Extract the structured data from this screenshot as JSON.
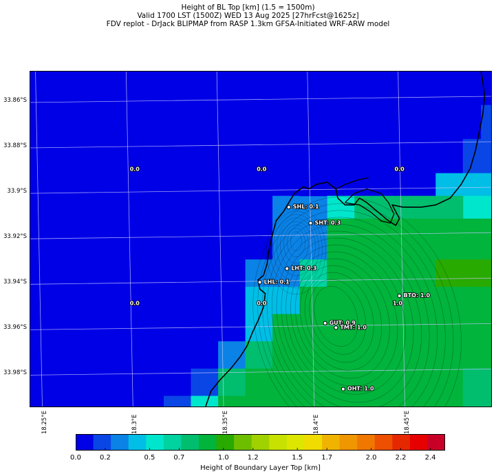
{
  "titles": {
    "line1": "Height of BL Top [km] (1.5 = 1500m)",
    "line2": "Valid 1700 LST (1500Z) WED 13 Aug 2025 [27hrFcst@1625z]",
    "line3": "FDV replot - DrJack BLIPMAP from RASP 1.3km GFSA-Initiated WRF-ARW model"
  },
  "chart_data": {
    "type": "heatmap",
    "lat_range": [
      -33.995,
      -33.847
    ],
    "lon_range": [
      18.246,
      18.501
    ],
    "lat_ticks": [
      {
        "label": "33.86°S",
        "value": -33.86
      },
      {
        "label": "33.88°S",
        "value": -33.88
      },
      {
        "label": "33.9°S",
        "value": -33.9
      },
      {
        "label": "33.92°S",
        "value": -33.92
      },
      {
        "label": "33.94°S",
        "value": -33.94
      },
      {
        "label": "33.96°S",
        "value": -33.96
      },
      {
        "label": "33.98°S",
        "value": -33.98
      }
    ],
    "lon_ticks": [
      {
        "label": "18.25°E",
        "value": 18.25
      },
      {
        "label": "18.3°E",
        "value": 18.3
      },
      {
        "label": "18.35°E",
        "value": 18.35
      },
      {
        "label": "18.4°E",
        "value": 18.4
      },
      {
        "label": "18.45°E",
        "value": 18.45
      }
    ],
    "colorbar": {
      "label": "Height of Boundary Layer Top [km]",
      "min": 0.0,
      "max": 2.5,
      "colors": [
        "#0000e6",
        "#0a46e6",
        "#0a82e6",
        "#00bee6",
        "#00e6cd",
        "#00d2a0",
        "#00be6e",
        "#00b43c",
        "#28aa00",
        "#6ebe00",
        "#a0d200",
        "#c8e100",
        "#dce600",
        "#f0dc00",
        "#f0b400",
        "#f09600",
        "#f07800",
        "#ec5000",
        "#e62800",
        "#e60000",
        "#c80028"
      ],
      "tick_labels": [
        {
          "label": "0.0",
          "value": 0.0
        },
        {
          "label": "0.2",
          "value": 0.2
        },
        {
          "label": "0.5",
          "value": 0.5
        },
        {
          "label": "0.7",
          "value": 0.7
        },
        {
          "label": "1.0",
          "value": 1.0
        },
        {
          "label": "1.2",
          "value": 1.2
        },
        {
          "label": "1.5",
          "value": 1.5
        },
        {
          "label": "1.7",
          "value": 1.7
        },
        {
          "label": "2.0",
          "value": 2.0
        },
        {
          "label": "2.2",
          "value": 2.2
        },
        {
          "label": "2.4",
          "value": 2.4
        }
      ]
    },
    "field_cells": [
      {
        "lon": [
          18.495,
          18.501
        ],
        "lat": [
          -33.862,
          -33.847
        ],
        "value": 0.05
      },
      {
        "lon": [
          18.495,
          18.501
        ],
        "lat": [
          -33.877,
          -33.862
        ],
        "value": 0.15
      },
      {
        "lon": [
          18.485,
          18.501
        ],
        "lat": [
          -33.892,
          -33.877
        ],
        "value": 0.15
      },
      {
        "lon": [
          18.47,
          18.501
        ],
        "lat": [
          -33.902,
          -33.892
        ],
        "value": 0.4
      },
      {
        "lon": [
          18.485,
          18.501
        ],
        "lat": [
          -33.912,
          -33.902
        ],
        "value": 0.55
      },
      {
        "lon": [
          18.47,
          18.485
        ],
        "lat": [
          -33.912,
          -33.902
        ],
        "value": 0.8
      },
      {
        "lon": [
          18.455,
          18.47
        ],
        "lat": [
          -33.912,
          -33.902
        ],
        "value": 0.8
      },
      {
        "lon": [
          18.44,
          18.455
        ],
        "lat": [
          -33.912,
          -33.902
        ],
        "value": 0.8
      },
      {
        "lon": [
          18.425,
          18.44
        ],
        "lat": [
          -33.912,
          -33.902
        ],
        "value": 0.8
      },
      {
        "lon": [
          18.41,
          18.425
        ],
        "lat": [
          -33.912,
          -33.902
        ],
        "value": 0.55
      },
      {
        "lon": [
          18.395,
          18.41
        ],
        "lat": [
          -33.912,
          -33.902
        ],
        "value": 0.3
      },
      {
        "lon": [
          18.38,
          18.395
        ],
        "lat": [
          -33.912,
          -33.902
        ],
        "value": 0.25
      },
      {
        "lon": [
          18.395,
          18.41
        ],
        "lat": [
          -33.902,
          -33.892
        ],
        "value": 0.1
      },
      {
        "lon": [
          18.38,
          18.395
        ],
        "lat": [
          -33.93,
          -33.912
        ],
        "value": 0.25
      },
      {
        "lon": [
          18.395,
          18.41
        ],
        "lat": [
          -33.93,
          -33.912
        ],
        "value": 0.25
      },
      {
        "lon": [
          18.41,
          18.425
        ],
        "lat": [
          -33.93,
          -33.912
        ],
        "value": 0.85
      },
      {
        "lon": [
          18.425,
          18.501
        ],
        "lat": [
          -33.93,
          -33.912
        ],
        "value": 0.9
      },
      {
        "lon": [
          18.365,
          18.38
        ],
        "lat": [
          -33.942,
          -33.93
        ],
        "value": 0.3
      },
      {
        "lon": [
          18.38,
          18.395
        ],
        "lat": [
          -33.942,
          -33.93
        ],
        "value": 0.35
      },
      {
        "lon": [
          18.395,
          18.41
        ],
        "lat": [
          -33.942,
          -33.93
        ],
        "value": 0.6
      },
      {
        "lon": [
          18.41,
          18.425
        ],
        "lat": [
          -33.942,
          -33.93
        ],
        "value": 0.85
      },
      {
        "lon": [
          18.425,
          18.47
        ],
        "lat": [
          -33.942,
          -33.93
        ],
        "value": 0.9
      },
      {
        "lon": [
          18.47,
          18.501
        ],
        "lat": [
          -33.942,
          -33.93
        ],
        "value": 1.05
      },
      {
        "lon": [
          18.365,
          18.38
        ],
        "lat": [
          -33.954,
          -33.942
        ],
        "value": 0.4
      },
      {
        "lon": [
          18.38,
          18.395
        ],
        "lat": [
          -33.954,
          -33.942
        ],
        "value": 0.45
      },
      {
        "lon": [
          18.395,
          18.41
        ],
        "lat": [
          -33.954,
          -33.942
        ],
        "value": 0.95
      },
      {
        "lon": [
          18.41,
          18.501
        ],
        "lat": [
          -33.954,
          -33.942
        ],
        "value": 0.95
      },
      {
        "lon": [
          18.365,
          18.38
        ],
        "lat": [
          -33.966,
          -33.954
        ],
        "value": 0.45
      },
      {
        "lon": [
          18.38,
          18.395
        ],
        "lat": [
          -33.966,
          -33.954
        ],
        "value": 0.85
      },
      {
        "lon": [
          18.395,
          18.41
        ],
        "lat": [
          -33.966,
          -33.954
        ],
        "value": 0.95
      },
      {
        "lon": [
          18.41,
          18.501
        ],
        "lat": [
          -33.966,
          -33.954
        ],
        "value": 0.95
      },
      {
        "lon": [
          18.35,
          18.365
        ],
        "lat": [
          -33.978,
          -33.966
        ],
        "value": 0.3
      },
      {
        "lon": [
          18.365,
          18.38
        ],
        "lat": [
          -33.978,
          -33.966
        ],
        "value": 0.75
      },
      {
        "lon": [
          18.38,
          18.395
        ],
        "lat": [
          -33.978,
          -33.966
        ],
        "value": 0.95
      },
      {
        "lon": [
          18.395,
          18.501
        ],
        "lat": [
          -33.978,
          -33.966
        ],
        "value": 0.95
      },
      {
        "lon": [
          18.335,
          18.35
        ],
        "lat": [
          -33.99,
          -33.978
        ],
        "value": 0.2
      },
      {
        "lon": [
          18.35,
          18.365
        ],
        "lat": [
          -33.99,
          -33.978
        ],
        "value": 0.75
      },
      {
        "lon": [
          18.365,
          18.38
        ],
        "lat": [
          -33.99,
          -33.978
        ],
        "value": 0.9
      },
      {
        "lon": [
          18.38,
          18.485
        ],
        "lat": [
          -33.99,
          -33.978
        ],
        "value": 0.95
      },
      {
        "lon": [
          18.485,
          18.501
        ],
        "lat": [
          -33.99,
          -33.978
        ],
        "value": 0.8
      },
      {
        "lon": [
          18.32,
          18.335
        ],
        "lat": [
          -33.995,
          -33.99
        ],
        "value": 0.2
      },
      {
        "lon": [
          18.335,
          18.35
        ],
        "lat": [
          -33.995,
          -33.99
        ],
        "value": 0.5
      },
      {
        "lon": [
          18.35,
          18.485
        ],
        "lat": [
          -33.995,
          -33.99
        ],
        "value": 0.95
      },
      {
        "lon": [
          18.485,
          18.501
        ],
        "lat": [
          -33.995,
          -33.99
        ],
        "value": 0.8
      }
    ],
    "grid_values": [
      {
        "text": "0.0",
        "lon": 18.304,
        "lat": -33.891
      },
      {
        "text": "0.0",
        "lon": 18.374,
        "lat": -33.891
      },
      {
        "text": "0.0",
        "lon": 18.45,
        "lat": -33.891
      },
      {
        "text": "0.0",
        "lon": 18.304,
        "lat": -33.95
      },
      {
        "text": "0.0",
        "lon": 18.374,
        "lat": -33.95
      },
      {
        "text": "1.0",
        "lon": 18.449,
        "lat": -33.95
      }
    ],
    "sites": [
      {
        "name": "SHL: 0.1",
        "lon": 18.389,
        "lat": -33.907
      },
      {
        "name": "SHT: 0.3",
        "lon": 18.401,
        "lat": -33.914
      },
      {
        "name": "LHT: 0.3",
        "lon": 18.388,
        "lat": -33.934
      },
      {
        "name": "LHL: 0.1",
        "lon": 18.373,
        "lat": -33.94
      },
      {
        "name": "BTO: 1.0",
        "lon": 18.45,
        "lat": -33.946
      },
      {
        "name": "GUT: 0.9",
        "lon": 18.409,
        "lat": -33.958
      },
      {
        "name": "TMT: 1.0",
        "lon": 18.415,
        "lat": -33.96
      },
      {
        "name": "OHT: 1.0",
        "lon": 18.419,
        "lat": -33.987
      }
    ],
    "coastline": [
      [
        18.495,
        -33.847
      ],
      [
        18.496,
        -33.852
      ],
      [
        18.497,
        -33.858
      ],
      [
        18.496,
        -33.866
      ],
      [
        18.494,
        -33.874
      ],
      [
        18.492,
        -33.882
      ],
      [
        18.489,
        -33.89
      ],
      [
        18.484,
        -33.897
      ],
      [
        18.478,
        -33.903
      ],
      [
        18.47,
        -33.906
      ],
      [
        18.462,
        -33.907
      ],
      [
        18.452,
        -33.907
      ],
      [
        18.446,
        -33.906
      ],
      [
        18.45,
        -33.912
      ],
      [
        18.448,
        -33.915
      ],
      [
        18.444,
        -33.913
      ],
      [
        18.438,
        -33.909
      ],
      [
        18.432,
        -33.905
      ],
      [
        18.428,
        -33.903
      ],
      [
        18.425,
        -33.906
      ],
      [
        18.42,
        -33.906
      ],
      [
        18.416,
        -33.903
      ],
      [
        18.415,
        -33.899
      ],
      [
        18.41,
        -33.896
      ],
      [
        18.404,
        -33.897
      ],
      [
        18.4,
        -33.899
      ],
      [
        18.397,
        -33.898
      ],
      [
        18.392,
        -33.901
      ],
      [
        18.389,
        -33.905
      ],
      [
        18.386,
        -33.909
      ],
      [
        18.382,
        -33.913
      ],
      [
        18.38,
        -33.919
      ],
      [
        18.378,
        -33.926
      ],
      [
        18.377,
        -33.932
      ],
      [
        18.375,
        -33.937
      ],
      [
        18.372,
        -33.939
      ],
      [
        18.373,
        -33.943
      ],
      [
        18.376,
        -33.945
      ],
      [
        18.375,
        -33.951
      ],
      [
        18.372,
        -33.957
      ],
      [
        18.369,
        -33.962
      ],
      [
        18.366,
        -33.968
      ],
      [
        18.362,
        -33.973
      ],
      [
        18.357,
        -33.978
      ],
      [
        18.351,
        -33.983
      ],
      [
        18.346,
        -33.988
      ],
      [
        18.343,
        -33.995
      ]
    ],
    "harbour_outline": [
      [
        18.42,
        -33.905
      ],
      [
        18.425,
        -33.901
      ],
      [
        18.432,
        -33.899
      ],
      [
        18.44,
        -33.901
      ],
      [
        18.444,
        -33.905
      ],
      [
        18.447,
        -33.91
      ],
      [
        18.445,
        -33.914
      ],
      [
        18.44,
        -33.913
      ],
      [
        18.434,
        -33.909
      ],
      [
        18.428,
        -33.906
      ],
      [
        18.42,
        -33.905
      ]
    ],
    "harbour_breakwater": [
      [
        18.415,
        -33.899
      ],
      [
        18.42,
        -33.897
      ],
      [
        18.427,
        -33.895
      ],
      [
        18.433,
        -33.894
      ]
    ],
    "terrain_center": {
      "lon": 18.415,
      "lat": -33.955
    }
  }
}
